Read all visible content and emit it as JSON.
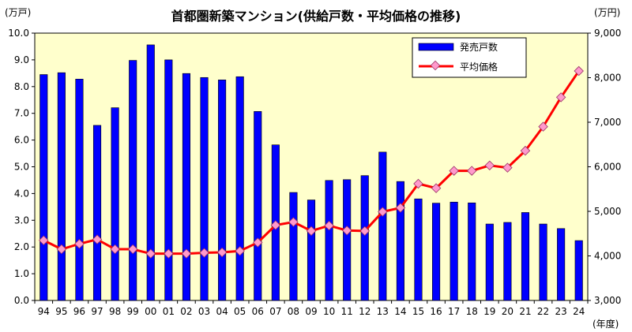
{
  "chart_data": {
    "type": "bar+line",
    "title": "首都圏新築マンション(供給戸数・平均価格の推移)",
    "categories": [
      "94",
      "95",
      "96",
      "97",
      "98",
      "99",
      "00",
      "01",
      "02",
      "03",
      "04",
      "05",
      "06",
      "07",
      "08",
      "09",
      "10",
      "11",
      "12",
      "13",
      "14",
      "15",
      "16",
      "17",
      "18",
      "19",
      "20",
      "21",
      "22",
      "23",
      "24"
    ],
    "x_unit": "(年度)",
    "y_left_unit": "(万戸)",
    "y_right_unit": "(万円)",
    "y_left_ticks": [
      "0.0",
      "1.0",
      "2.0",
      "3.0",
      "4.0",
      "5.0",
      "6.0",
      "7.0",
      "8.0",
      "9.0",
      "10.0"
    ],
    "y_right_ticks": [
      "3,000",
      "4,000",
      "5,000",
      "6,000",
      "7,000",
      "8,000",
      "9,000"
    ],
    "y_left_range": [
      0,
      10
    ],
    "y_right_range": [
      3000,
      9000
    ],
    "series": [
      {
        "name": "発売戸数",
        "kind": "bar",
        "axis": "left",
        "color": "#0000ff",
        "values": [
          8.45,
          8.52,
          8.28,
          6.55,
          7.21,
          8.98,
          9.56,
          9.0,
          8.49,
          8.34,
          8.25,
          8.37,
          7.07,
          5.82,
          4.04,
          3.76,
          4.49,
          4.52,
          4.67,
          5.55,
          4.45,
          3.8,
          3.64,
          3.68,
          3.65,
          2.86,
          2.92,
          3.29,
          2.86,
          2.69,
          2.24
        ]
      },
      {
        "name": "平均価格",
        "kind": "line",
        "axis": "right",
        "color": "#ff0000",
        "marker_color": "#ff99cc",
        "values": [
          4350,
          4150,
          4270,
          4370,
          4150,
          4150,
          4050,
          4050,
          4050,
          4070,
          4080,
          4110,
          4300,
          4690,
          4760,
          4560,
          4680,
          4570,
          4560,
          4990,
          5080,
          5620,
          5520,
          5910,
          5910,
          6030,
          5980,
          6360,
          6900,
          7560,
          8150
        ]
      }
    ],
    "grid": false,
    "legend": "top-right",
    "plot_background": "#ffffcc"
  }
}
